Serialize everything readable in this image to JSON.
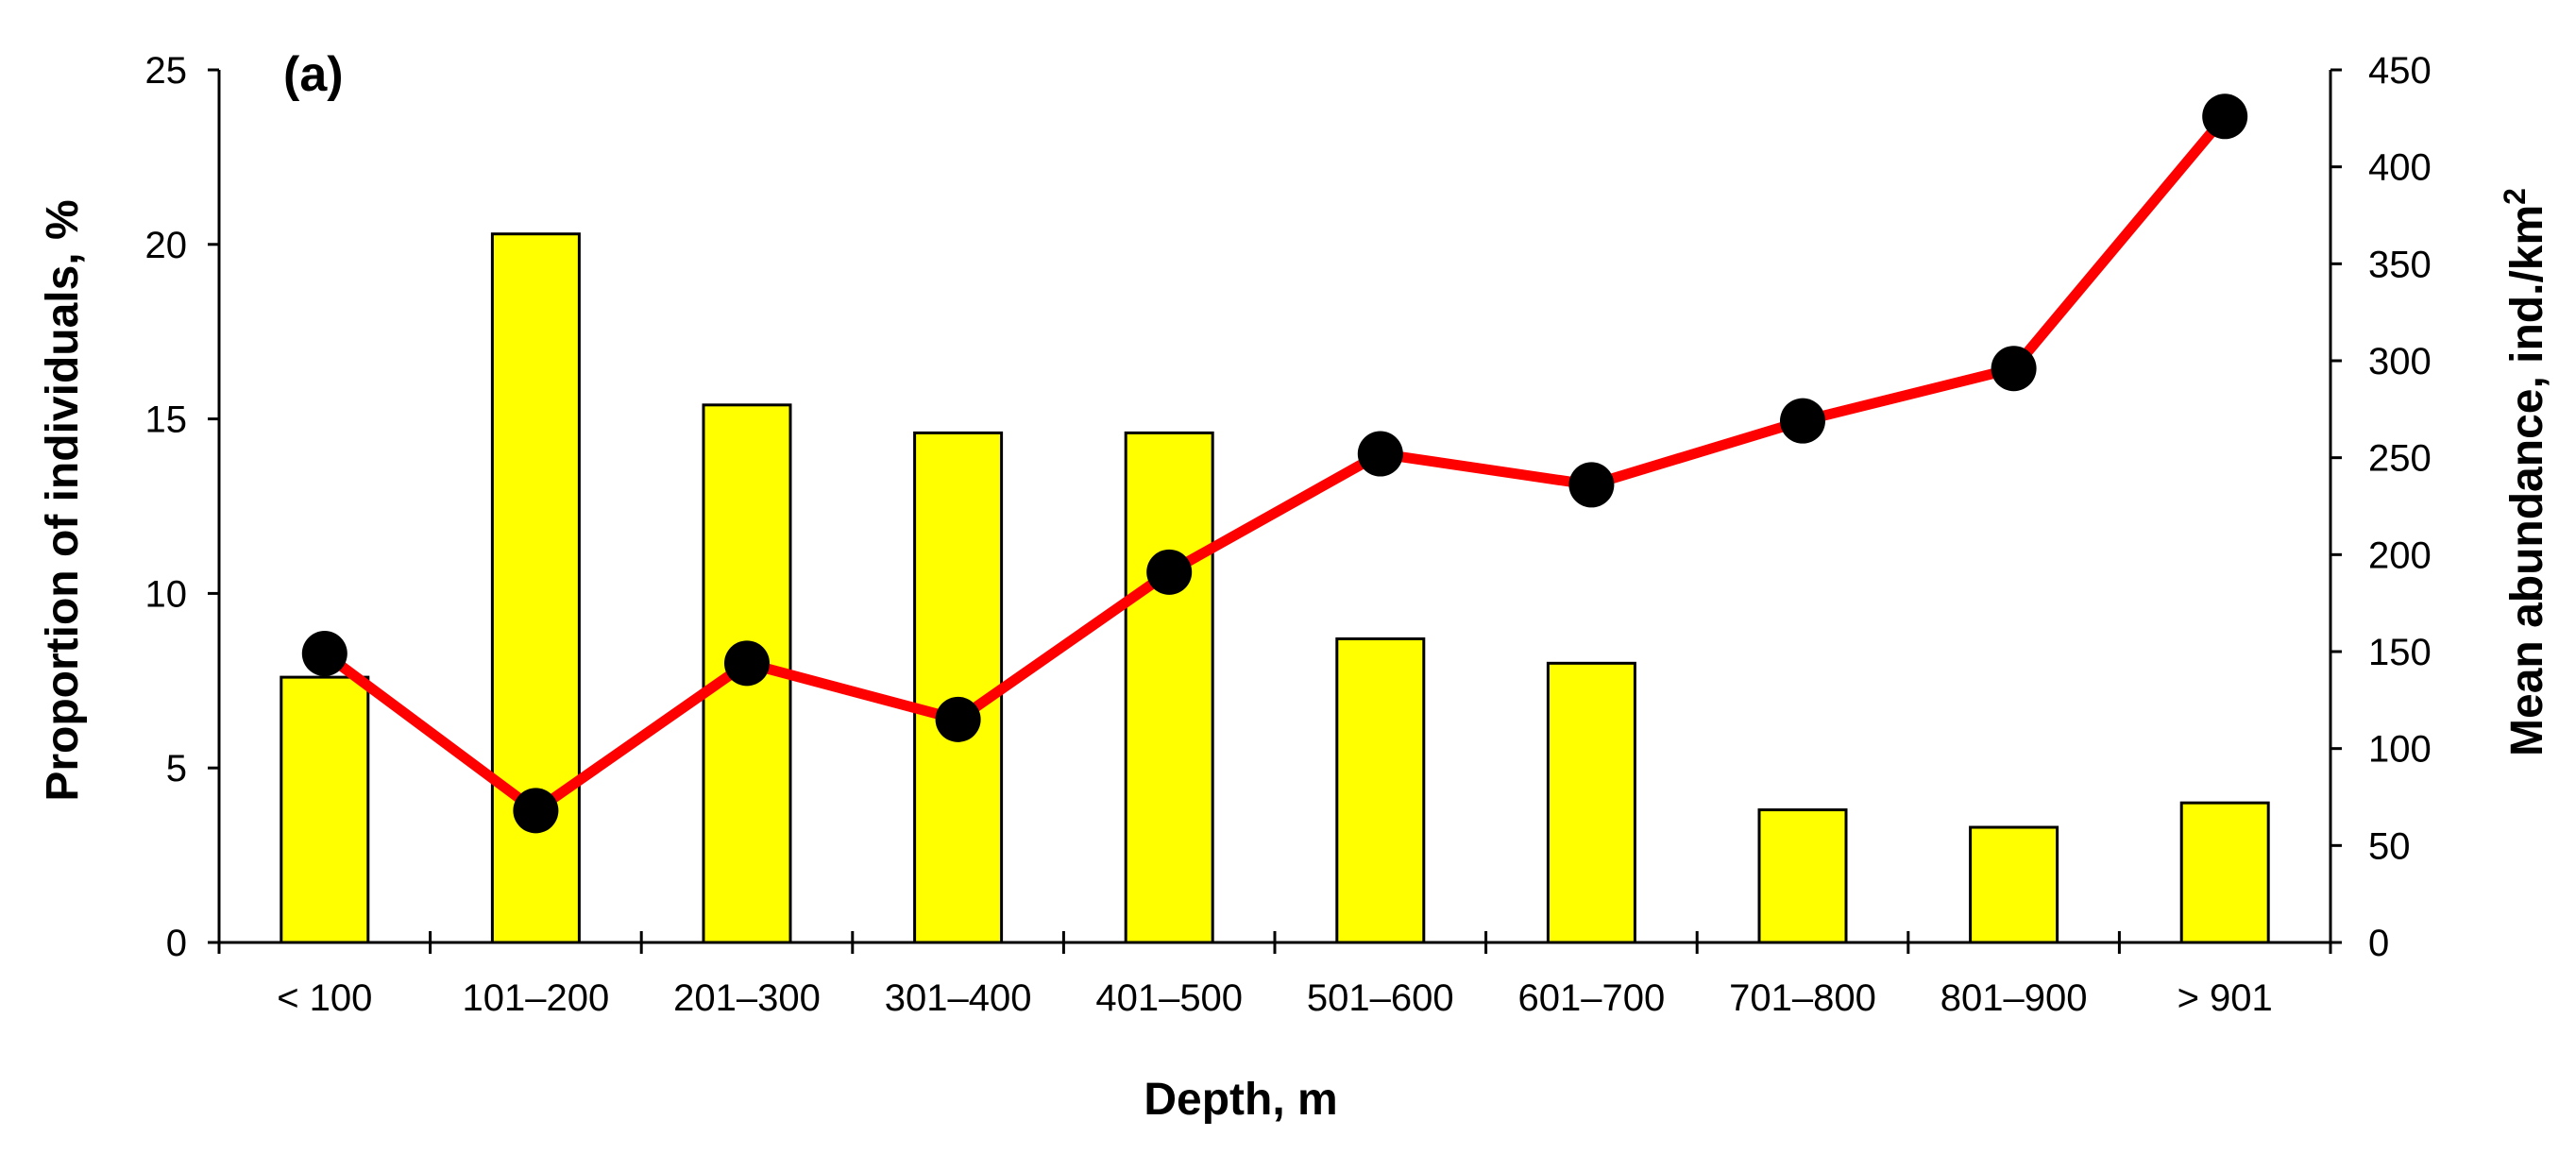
{
  "chart_data": {
    "type": "bar+line",
    "panel_label": "(a)",
    "categories": [
      "< 100",
      "101–200",
      "201–300",
      "301–400",
      "401–500",
      "501–600",
      "601–700",
      "701–800",
      "801–900",
      "> 901"
    ],
    "series": [
      {
        "name": "",
        "type": "bar",
        "axis": "left",
        "values": [
          7.6,
          20.3,
          15.4,
          14.6,
          14.6,
          8.7,
          8.0,
          3.8,
          3.3,
          4.0
        ]
      },
      {
        "name": "",
        "type": "line",
        "axis": "right",
        "values": [
          149,
          68,
          144,
          115,
          191,
          252,
          236,
          269,
          296,
          426
        ]
      }
    ],
    "xlabel": "Depth, m",
    "ylabel_left": "Proportion of individuals, %",
    "ylabel_right_main": "Mean abundance, ind./km",
    "ylabel_right_sup": "2",
    "ylim_left": [
      0,
      25
    ],
    "ylim_right": [
      0,
      450
    ],
    "yticks_left": [
      0,
      5,
      10,
      15,
      20,
      25
    ],
    "yticks_right": [
      0,
      50,
      100,
      150,
      200,
      250,
      300,
      350,
      400,
      450
    ],
    "grid": false,
    "legend": "none",
    "colors": {
      "bar_fill": "#ffff00",
      "bar_stroke": "#000000",
      "line": "#ff0000",
      "marker": "#000000",
      "axis": "#000000"
    }
  }
}
